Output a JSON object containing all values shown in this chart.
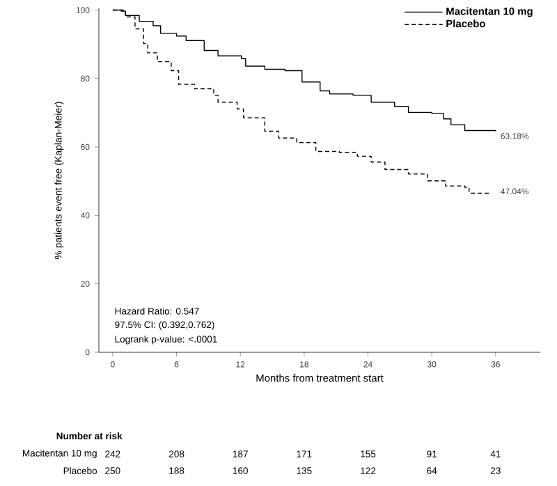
{
  "chart_data": {
    "type": "step",
    "xlabel": "Months from treatment start",
    "ylabel": "% patients event free (Kaplan-Meier)",
    "xlim": [
      -1.3,
      40.2
    ],
    "ylim": [
      0,
      100.5
    ],
    "xticks": [
      0,
      6,
      12,
      18,
      24,
      30,
      36
    ],
    "yticks": [
      0,
      20,
      40,
      60,
      80,
      100
    ],
    "legend": "top right",
    "grid": false,
    "series": [
      {
        "name": "Macitentan 10 mg",
        "color": "#000000",
        "line_style": "solid",
        "x": [
          0,
          0.8,
          1.2,
          2.5,
          3.8,
          4.5,
          6.0,
          6.9,
          8.6,
          9.9,
          12.1,
          12.5,
          14.3,
          16.2,
          17.8,
          19.5,
          20.4,
          22.6,
          24.3,
          26.5,
          27.8,
          30.0,
          31.1,
          31.8,
          33.1,
          36.0
        ],
        "values": [
          100,
          99.7,
          98.4,
          96.7,
          95.4,
          93.2,
          92.4,
          91.1,
          88.2,
          86.6,
          85.8,
          83.6,
          82.7,
          82.3,
          79.0,
          76.4,
          75.5,
          75.1,
          73.1,
          71.8,
          70.1,
          69.8,
          68.2,
          66.5,
          64.8,
          64.6
        ]
      },
      {
        "name": "Placebo",
        "color": "#000000",
        "line_style": "dashed",
        "x": [
          0,
          1.2,
          2.1,
          2.9,
          3.3,
          4.2,
          5.5,
          6.2,
          7.7,
          9.5,
          9.9,
          11.7,
          12.3,
          14.3,
          15.6,
          17.3,
          19.1,
          21.3,
          23.0,
          24.3,
          25.6,
          27.8,
          29.6,
          31.3,
          33.1,
          33.5,
          35.5
        ],
        "values": [
          100,
          98,
          94.5,
          90.2,
          87.5,
          84.9,
          82.3,
          78.3,
          77.0,
          75.1,
          73.1,
          71.1,
          68.5,
          64.6,
          62.6,
          61.3,
          58.7,
          58.4,
          57.3,
          55.6,
          53.4,
          52.1,
          50.1,
          48.6,
          48.2,
          46.5,
          46.5
        ]
      }
    ],
    "annotations": [
      "Hazard Ratio: 0.547",
      "97.5% CI: (0.392,0.762)",
      "Logrank p-value: <.0001",
      {
        "text": "63.18%",
        "x": 36,
        "y": 63.18
      },
      {
        "text": "47.04%",
        "x": 36,
        "y": 47.04
      },
      "Number at risk",
      "Macitentan 10 mg",
      "242",
      "208",
      "187",
      "171",
      "155",
      "91",
      "41",
      "Placebo",
      "250",
      "188",
      "160",
      "135",
      "122",
      "64",
      "23"
    ]
  }
}
